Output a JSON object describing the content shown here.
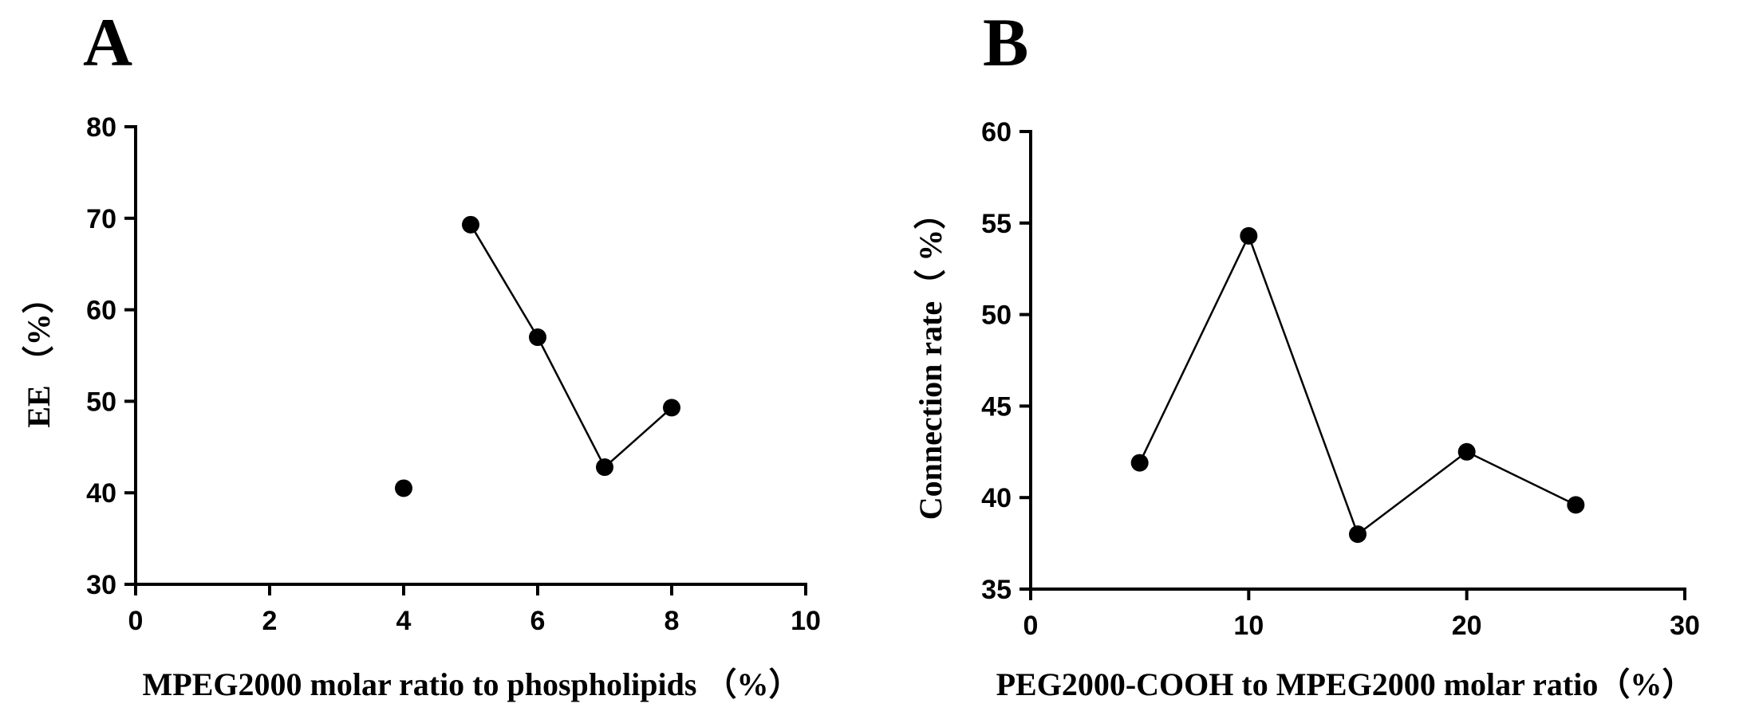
{
  "chart_data": [
    {
      "type": "line",
      "panel": "A",
      "title": "",
      "xlabel": "MPEG2000 molar ratio to phospholipids （%）",
      "ylabel": "EE （%）",
      "xlim": [
        0,
        10
      ],
      "ylim": [
        30,
        80
      ],
      "xticks": [
        0,
        2,
        4,
        6,
        8,
        10
      ],
      "yticks": [
        30,
        40,
        50,
        60,
        70,
        80
      ],
      "grid": false,
      "series": [
        {
          "name": "EE",
          "x": [
            4,
            5,
            6,
            7,
            8
          ],
          "y": [
            40.5,
            69.3,
            57.0,
            42.8,
            49.3
          ],
          "connected_from_index": 1
        }
      ]
    },
    {
      "type": "line",
      "panel": "B",
      "title": "",
      "xlabel": "PEG2000-COOH to MPEG2000 molar ratio（%）",
      "ylabel": "Connection rate（ %）",
      "xlim": [
        0,
        30
      ],
      "ylim": [
        35,
        60
      ],
      "xticks": [
        0,
        10,
        20,
        30
      ],
      "yticks": [
        35,
        40,
        45,
        50,
        55,
        60
      ],
      "grid": false,
      "series": [
        {
          "name": "Connection rate",
          "x": [
            5,
            10,
            15,
            20,
            25
          ],
          "y": [
            41.9,
            54.3,
            38.0,
            42.5,
            39.6
          ],
          "connected_from_index": 0
        }
      ]
    }
  ]
}
